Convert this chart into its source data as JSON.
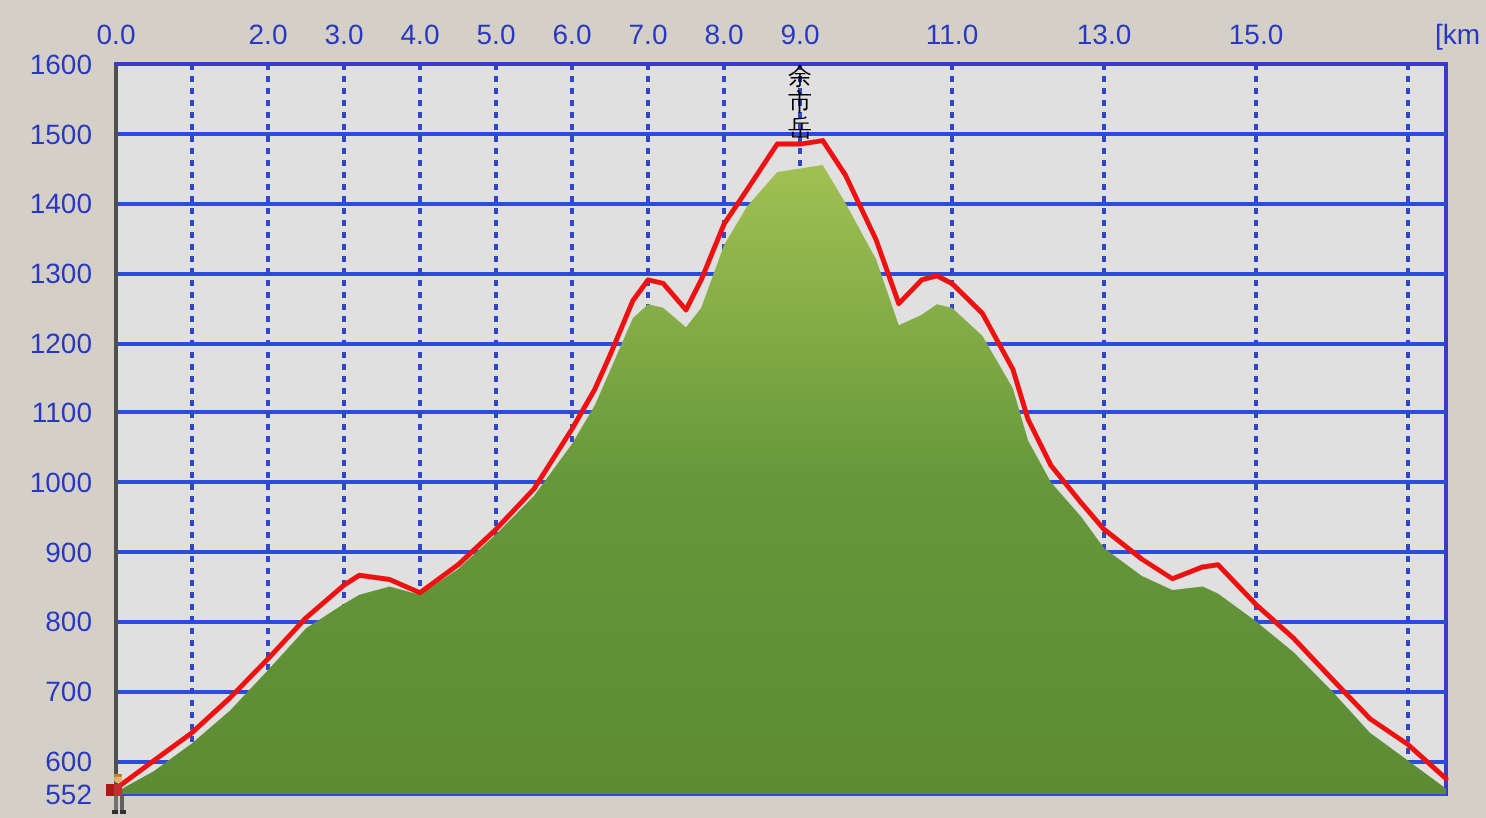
{
  "chart_data": {
    "type": "area",
    "xlabel": "[km",
    "x": [
      0.0,
      0.5,
      1.0,
      1.5,
      2.0,
      2.5,
      3.0,
      3.2,
      3.6,
      4.0,
      4.5,
      5.0,
      5.5,
      6.0,
      6.3,
      6.5,
      6.8,
      7.0,
      7.2,
      7.5,
      7.7,
      8.0,
      8.3,
      8.7,
      9.0,
      9.3,
      9.6,
      10.0,
      10.3,
      10.6,
      10.8,
      11.0,
      11.4,
      11.8,
      12.0,
      12.3,
      12.7,
      13.0,
      13.5,
      13.9,
      14.3,
      14.5,
      15.0,
      15.5,
      16.0,
      16.5,
      17.0,
      17.5
    ],
    "series": [
      {
        "color": "#66983a",
        "values": [
          555,
          585,
          625,
          672,
          730,
          790,
          825,
          838,
          850,
          838,
          875,
          925,
          980,
          1055,
          1110,
          1160,
          1235,
          1255,
          1250,
          1222,
          1250,
          1340,
          1395,
          1445,
          1450,
          1455,
          1400,
          1320,
          1225,
          1240,
          1255,
          1250,
          1210,
          1135,
          1060,
          1000,
          950,
          905,
          865,
          845,
          850,
          840,
          800,
          755,
          700,
          640,
          600,
          560
        ]
      },
      {
        "type": "line",
        "color": "#ee1111",
        "values": [
          560,
          600,
          640,
          690,
          746,
          805,
          852,
          866,
          860,
          841,
          881,
          932,
          990,
          1076,
          1133,
          1182,
          1260,
          1290,
          1285,
          1247,
          1290,
          1370,
          1419,
          1485,
          1485,
          1490,
          1440,
          1348,
          1256,
          1290,
          1296,
          1285,
          1242,
          1162,
          1090,
          1024,
          970,
          932,
          889,
          861,
          878,
          881,
          824,
          775,
          717,
          660,
          623,
          574
        ]
      }
    ],
    "xlim": [
      0,
      17.5
    ],
    "xticks": [
      {
        "value": 0,
        "label": "0.0"
      },
      {
        "value": 1,
        "label": null
      },
      {
        "value": 2,
        "label": "2.0"
      },
      {
        "value": 3,
        "label": "3.0"
      },
      {
        "value": 4,
        "label": "4.0"
      },
      {
        "value": 5,
        "label": "5.0"
      },
      {
        "value": 6,
        "label": "6.0"
      },
      {
        "value": 7,
        "label": "7.0"
      },
      {
        "value": 8,
        "label": "8.0"
      },
      {
        "value": 9,
        "label": "9.0"
      },
      {
        "value": 11,
        "label": "11.0"
      },
      {
        "value": 13,
        "label": "13.0"
      },
      {
        "value": 15,
        "label": "15.0"
      },
      {
        "value": 17,
        "label": null
      }
    ],
    "ylim": [
      552,
      1600
    ],
    "yticks": [
      552,
      600,
      700,
      800,
      900,
      1000,
      1100,
      1200,
      1300,
      1400,
      1500,
      1600
    ],
    "annotations": [
      {
        "text": "余市岳",
        "x": 9.0,
        "y": 1488
      }
    ],
    "grid": true,
    "marker": "none",
    "line_style": "solid"
  }
}
